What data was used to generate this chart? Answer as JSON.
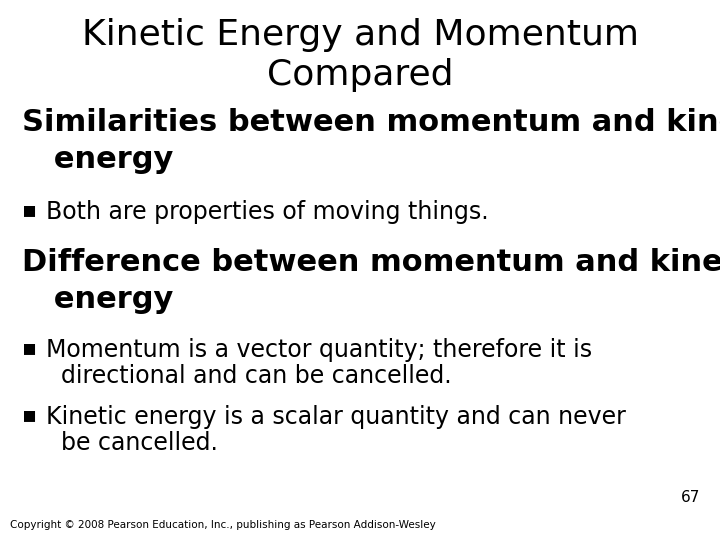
{
  "title_line1": "Kinetic Energy and Momentum",
  "title_line2": "Compared",
  "title_fontsize": 26,
  "background_color": "#ffffff",
  "text_color": "#000000",
  "section1_line1": "Similarities between momentum and kinetic",
  "section1_line2": "   energy",
  "section1_fontsize": 22,
  "section1_bullet": "Both are properties of moving things.",
  "bullet_fontsize": 17,
  "section2_line1": "Difference between momentum and kinetic",
  "section2_line2": "   energy",
  "section2_fontsize": 22,
  "section2_bullet1_line1": "Momentum is a vector quantity; therefore it is",
  "section2_bullet1_line2": "  directional and can be cancelled.",
  "section2_bullet2_line1": "Kinetic energy is a scalar quantity and can never",
  "section2_bullet2_line2": "  be cancelled.",
  "page_number": "67",
  "page_number_fontsize": 11,
  "copyright": "Copyright © 2008 Pearson Education, Inc., publishing as Pearson Addison-Wesley",
  "copyright_fontsize": 7.5,
  "bullet_char": "▪"
}
